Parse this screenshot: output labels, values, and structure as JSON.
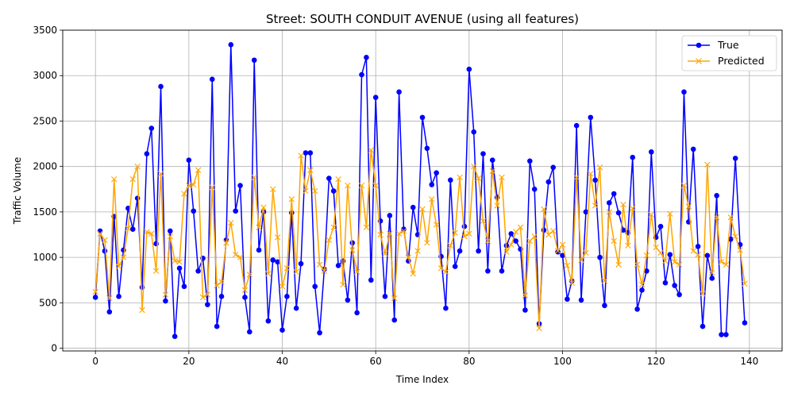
{
  "chart_data": {
    "type": "line",
    "title": "Street: SOUTH CONDUIT AVENUE (using all features)",
    "xlabel": "Time Index",
    "ylabel": "Traffic Volume",
    "xlim": [
      -7,
      147
    ],
    "ylim": [
      -30,
      3500
    ],
    "xticks": [
      0,
      20,
      40,
      60,
      80,
      100,
      120,
      140
    ],
    "yticks": [
      0,
      500,
      1000,
      1500,
      2000,
      2500,
      3000,
      3500
    ],
    "grid": true,
    "legend_position": "top-right",
    "series": [
      {
        "name": "True",
        "color": "#0000ff",
        "marker": "circle",
        "values": [
          560,
          1290,
          1070,
          400,
          1450,
          570,
          1080,
          1540,
          1310,
          1650,
          670,
          2140,
          2420,
          1150,
          2880,
          520,
          1290,
          130,
          880,
          680,
          2070,
          1510,
          850,
          990,
          480,
          2960,
          240,
          570,
          1190,
          3340,
          1510,
          1790,
          560,
          180,
          3170,
          1080,
          1500,
          300,
          970,
          950,
          200,
          570,
          1490,
          440,
          930,
          2150,
          2150,
          680,
          170,
          870,
          1870,
          1730,
          910,
          960,
          530,
          1160,
          390,
          3010,
          3200,
          750,
          2760,
          1400,
          570,
          1460,
          310,
          2820,
          1310,
          960,
          1550,
          1250,
          2540,
          2200,
          1800,
          1930,
          1010,
          440,
          1850,
          900,
          1070,
          1340,
          3070,
          2380,
          1070,
          2140,
          850,
          2070,
          1660,
          850,
          1130,
          1260,
          1180,
          1090,
          420,
          2060,
          1750,
          270,
          1300,
          1830,
          1990,
          1060,
          1020,
          540,
          740,
          2450,
          530,
          1500,
          2540,
          1850,
          1000,
          470,
          1600,
          1700,
          1490,
          1300,
          1270,
          2100,
          430,
          640,
          850,
          2160,
          1220,
          1340,
          720,
          1030,
          690,
          590,
          2820,
          1390,
          2190,
          1120,
          240,
          1020,
          770,
          1680,
          150,
          150,
          1200,
          2090,
          1140,
          280
        ]
      },
      {
        "name": "Predicted",
        "color": "#ffa500",
        "marker": "x",
        "values": [
          620,
          1260,
          1190,
          550,
          1860,
          900,
          1000,
          1320,
          1860,
          2000,
          420,
          1280,
          1260,
          850,
          1920,
          590,
          1230,
          960,
          950,
          1700,
          1790,
          1800,
          1960,
          560,
          590,
          1770,
          690,
          730,
          1160,
          1380,
          1030,
          1000,
          640,
          810,
          1880,
          1330,
          1550,
          820,
          1750,
          1220,
          680,
          880,
          1640,
          840,
          2120,
          1730,
          1960,
          1730,
          920,
          850,
          1190,
          1330,
          1860,
          700,
          1790,
          1080,
          840,
          1790,
          1330,
          2180,
          1790,
          1250,
          1040,
          1260,
          550,
          1260,
          1290,
          1000,
          820,
          1070,
          1530,
          1160,
          1640,
          1360,
          880,
          840,
          1130,
          1270,
          1880,
          1230,
          1260,
          2000,
          1870,
          1400,
          1180,
          1950,
          1570,
          1880,
          1060,
          1140,
          1280,
          1330,
          580,
          1180,
          1230,
          220,
          1530,
          1250,
          1290,
          1070,
          1140,
          910,
          720,
          1880,
          970,
          1050,
          1920,
          1570,
          1990,
          740,
          1500,
          1180,
          920,
          1580,
          1130,
          1540,
          920,
          700,
          1020,
          1470,
          1110,
          1050,
          960,
          1480,
          950,
          920,
          1790,
          1560,
          1070,
          1030,
          600,
          2020,
          830,
          1440,
          950,
          920,
          1440,
          1230,
          1080,
          710
        ]
      }
    ]
  }
}
